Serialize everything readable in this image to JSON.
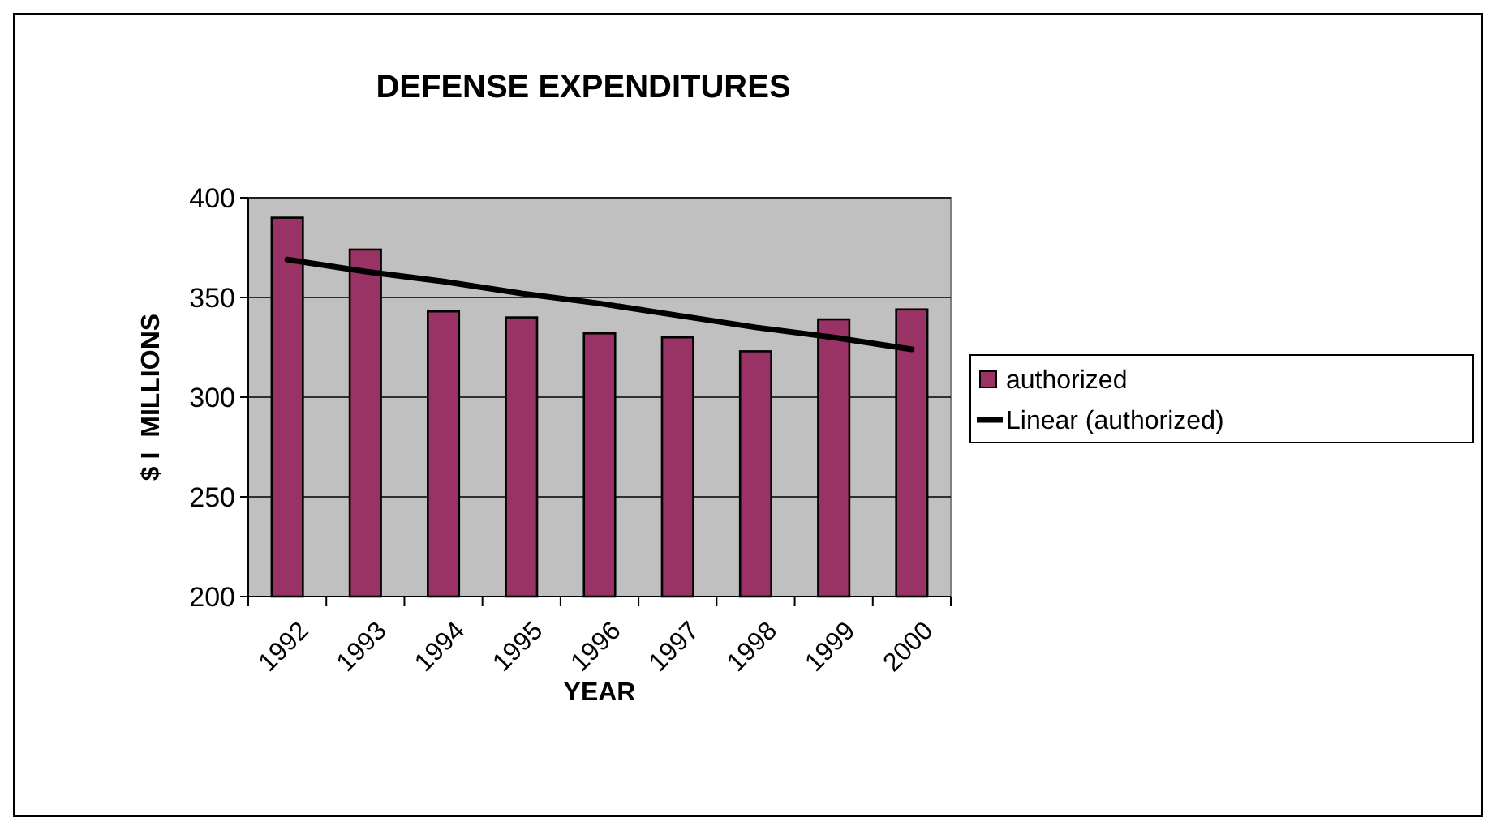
{
  "chart_data": {
    "type": "bar",
    "title": "DEFENSE EXPENDITURES",
    "xlabel": "YEAR",
    "ylabel": "$ I  MILLIONS",
    "categories": [
      "1992",
      "1993",
      "1994",
      "1995",
      "1996",
      "1997",
      "1998",
      "1999",
      "2000"
    ],
    "series": [
      {
        "name": "authorized",
        "color": "#993366",
        "values": [
          390,
          374,
          343,
          340,
          332,
          330,
          323,
          339,
          344
        ]
      },
      {
        "name": "Linear (authorized)",
        "type": "line",
        "color": "#000000",
        "values": [
          369,
          363,
          358,
          352,
          347,
          341,
          335,
          330,
          324
        ]
      }
    ],
    "ylim": [
      200,
      400
    ],
    "yticks": [
      200,
      250,
      300,
      350,
      400
    ],
    "grid": "y",
    "legend": "right"
  }
}
